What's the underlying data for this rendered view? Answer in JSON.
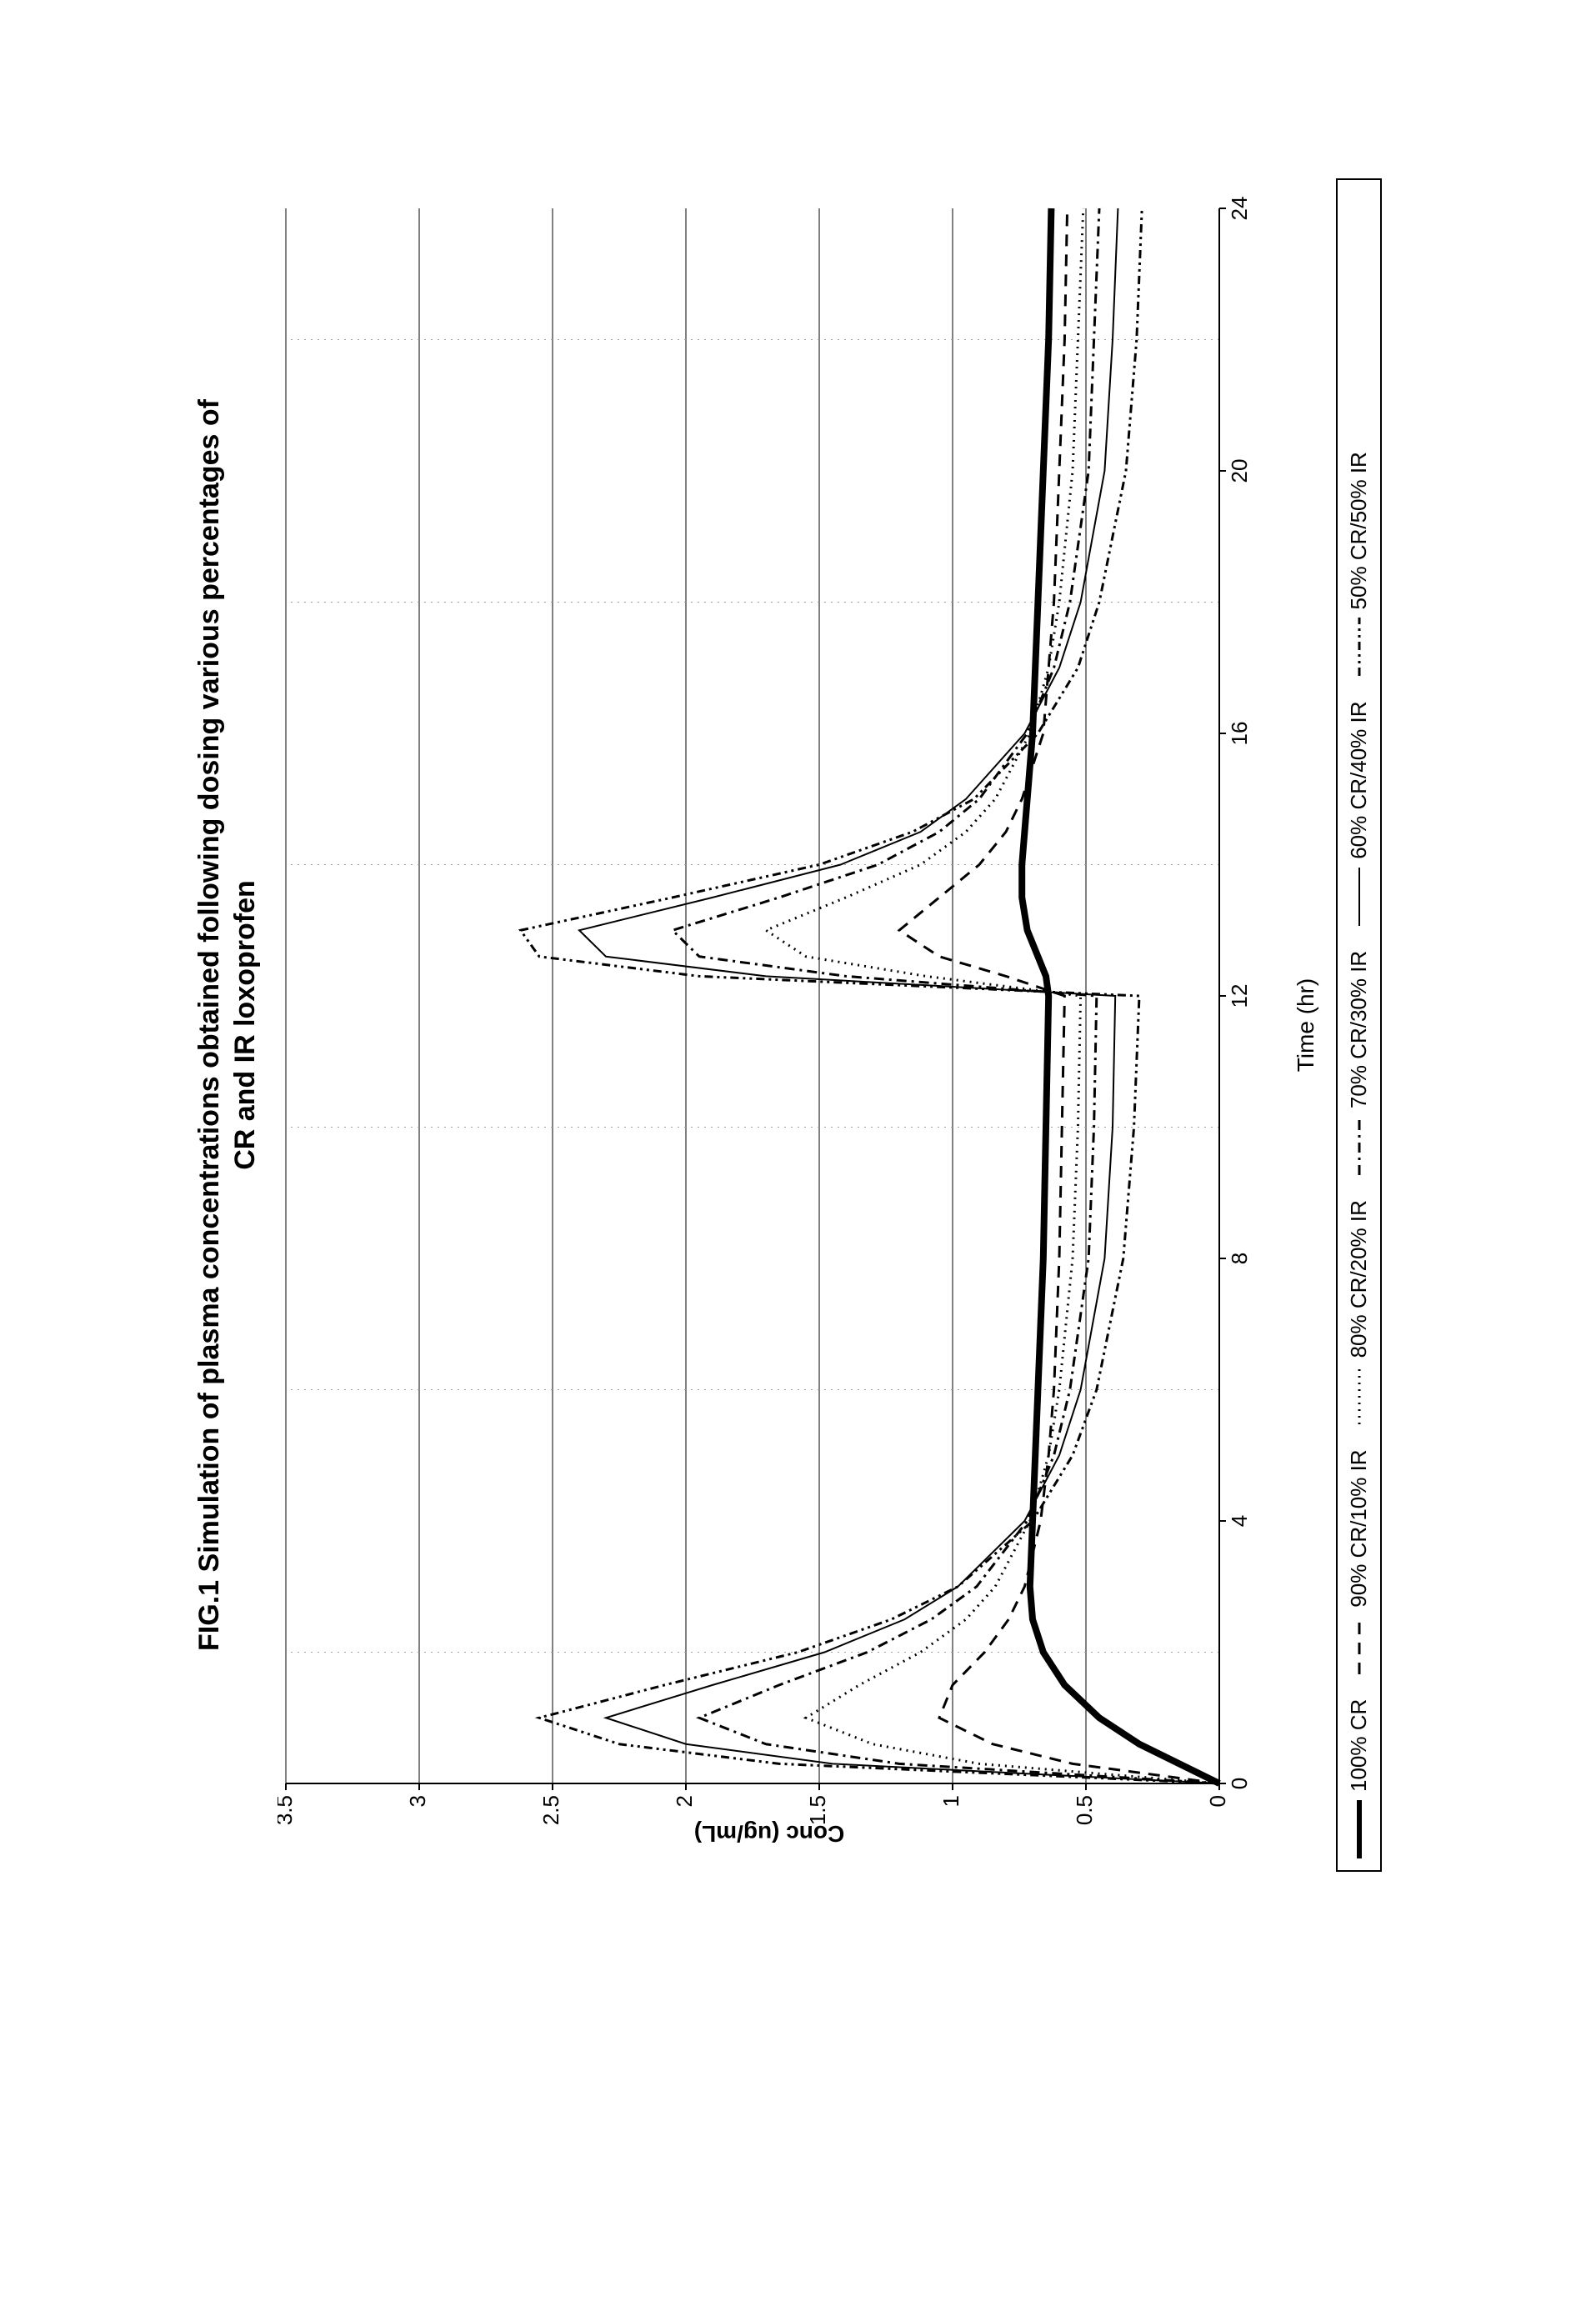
{
  "chart": {
    "type": "line",
    "title_line1": "FIG.1 Simulation of plasma concentrations obtained following dosing various percentages of",
    "title_line2": "CR and IR loxoprofen",
    "title_fontsize": 34,
    "xlabel": "Time (hr)",
    "ylabel": "Conc (ug/mL)",
    "label_fontsize": 28,
    "xlim": [
      0,
      24
    ],
    "ylim": [
      0,
      3.5
    ],
    "xtick_step": 4,
    "ytick_step": 0.5,
    "xticks": [
      0,
      4,
      8,
      12,
      16,
      20,
      24
    ],
    "yticks": [
      0,
      0.5,
      1,
      1.5,
      2,
      2.5,
      3,
      3.5
    ],
    "background_color": "#ffffff",
    "axis_color": "#000000",
    "grid_color": "#000000",
    "grid_minor_color": "#a0a0a0",
    "minor_grid_x": [
      2,
      6,
      10,
      14,
      18,
      22
    ],
    "series": [
      {
        "label": "100% CR",
        "color": "#000000",
        "width": 8,
        "dash": "none",
        "x": [
          0,
          0.3,
          0.6,
          1,
          1.5,
          2,
          2.5,
          3,
          4,
          5,
          6,
          8,
          10,
          12,
          12.3,
          12.6,
          13,
          13.5,
          14,
          14.5,
          15,
          16,
          17,
          18,
          20,
          22,
          24
        ],
        "y": [
          0,
          0.15,
          0.3,
          0.45,
          0.58,
          0.66,
          0.7,
          0.71,
          0.7,
          0.69,
          0.68,
          0.66,
          0.65,
          0.64,
          0.65,
          0.68,
          0.72,
          0.74,
          0.74,
          0.73,
          0.72,
          0.7,
          0.69,
          0.68,
          0.66,
          0.64,
          0.63
        ]
      },
      {
        "label": "90% CR/10% IR",
        "color": "#000000",
        "width": 3,
        "dash": "14,10",
        "x": [
          0,
          0.3,
          0.6,
          1,
          1.5,
          2,
          2.5,
          3,
          4,
          5,
          6,
          8,
          10,
          12,
          12.3,
          12.6,
          13,
          13.5,
          14,
          14.5,
          15,
          16,
          17,
          18,
          20,
          22,
          24
        ],
        "y": [
          0,
          0.55,
          0.85,
          1.05,
          1.0,
          0.88,
          0.79,
          0.73,
          0.67,
          0.64,
          0.62,
          0.6,
          0.59,
          0.58,
          0.8,
          1.05,
          1.2,
          1.05,
          0.9,
          0.8,
          0.74,
          0.66,
          0.64,
          0.62,
          0.6,
          0.58,
          0.57
        ]
      },
      {
        "label": "80% CR/20% IR",
        "color": "#000000",
        "width": 3,
        "dash": "2,6",
        "x": [
          0,
          0.3,
          0.6,
          1,
          1.5,
          2,
          2.5,
          3,
          4,
          5,
          6,
          8,
          10,
          12,
          12.3,
          12.6,
          13,
          13.5,
          14,
          14.5,
          15,
          16,
          17,
          18,
          20,
          22,
          24
        ],
        "y": [
          0,
          0.9,
          1.3,
          1.55,
          1.35,
          1.12,
          0.95,
          0.84,
          0.71,
          0.64,
          0.6,
          0.55,
          0.53,
          0.52,
          1.1,
          1.55,
          1.7,
          1.4,
          1.12,
          0.95,
          0.84,
          0.71,
          0.64,
          0.6,
          0.55,
          0.53,
          0.51
        ]
      },
      {
        "label": "70% CR/30% IR",
        "color": "#000000",
        "width": 3,
        "dash": "12,6,3,6",
        "x": [
          0,
          0.3,
          0.6,
          1,
          1.5,
          2,
          2.5,
          3,
          4,
          5,
          6,
          8,
          10,
          12,
          12.3,
          12.6,
          13,
          13.5,
          14,
          14.5,
          15,
          16,
          17,
          18,
          20,
          22,
          24
        ],
        "y": [
          0,
          1.2,
          1.7,
          1.95,
          1.65,
          1.32,
          1.08,
          0.91,
          0.72,
          0.62,
          0.56,
          0.49,
          0.47,
          0.46,
          1.4,
          1.95,
          2.05,
          1.65,
          1.28,
          1.05,
          0.9,
          0.72,
          0.62,
          0.56,
          0.49,
          0.47,
          0.45
        ]
      },
      {
        "label": "60% CR/40% IR",
        "color": "#000000",
        "width": 2,
        "dash": "none",
        "x": [
          0,
          0.3,
          0.6,
          1,
          1.5,
          2,
          2.5,
          3,
          4,
          5,
          6,
          8,
          10,
          12,
          12.3,
          12.6,
          13,
          13.5,
          14,
          14.5,
          15,
          16,
          17,
          18,
          20,
          22,
          24
        ],
        "y": [
          0,
          1.45,
          2.0,
          2.3,
          1.9,
          1.48,
          1.18,
          0.98,
          0.73,
          0.6,
          0.52,
          0.43,
          0.4,
          0.39,
          1.7,
          2.3,
          2.4,
          1.9,
          1.42,
          1.12,
          0.95,
          0.73,
          0.6,
          0.52,
          0.43,
          0.4,
          0.38
        ]
      },
      {
        "label": "50% CR/50% IR",
        "color": "#000000",
        "width": 3,
        "dash": "10,5,3,5,3,5",
        "x": [
          0,
          0.3,
          0.6,
          1,
          1.5,
          2,
          2.5,
          3,
          4,
          5,
          6,
          8,
          10,
          12,
          12.3,
          12.6,
          13,
          13.5,
          14,
          14.5,
          15,
          16,
          17,
          18,
          20,
          22,
          24
        ],
        "y": [
          0,
          1.65,
          2.25,
          2.55,
          2.08,
          1.58,
          1.23,
          0.98,
          0.7,
          0.55,
          0.46,
          0.36,
          0.32,
          0.3,
          1.95,
          2.55,
          2.62,
          2.05,
          1.5,
          1.15,
          0.92,
          0.68,
          0.53,
          0.45,
          0.35,
          0.31,
          0.29
        ]
      }
    ]
  }
}
